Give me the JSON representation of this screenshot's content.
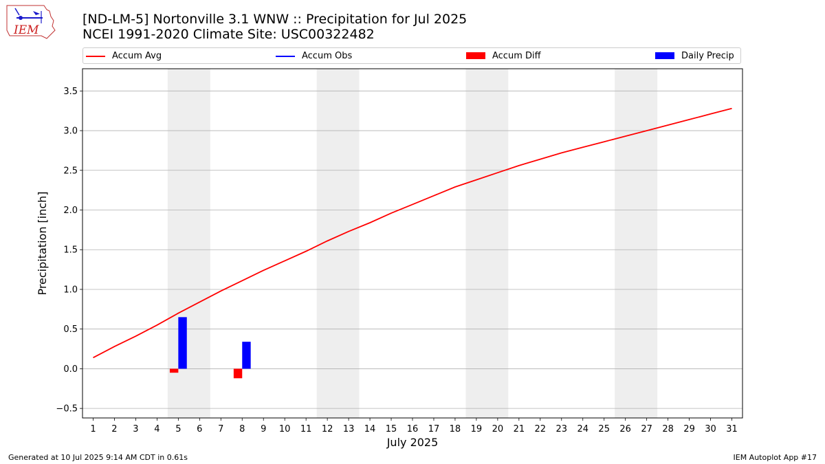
{
  "header": {
    "title_line1": "[ND-LM-5] Nortonville 3.1 WNW :: Precipitation for Jul 2025",
    "title_line2": "NCEI 1991-2020 Climate Site: USC00322482",
    "logo_text": "IEM"
  },
  "footer": {
    "generated": "Generated at 10 Jul 2025 9:14 AM CDT in 0.61s",
    "app": "IEM Autoplot App #17"
  },
  "legend": {
    "items": [
      {
        "label": "Accum Avg",
        "kind": "line",
        "color": "#ff0000"
      },
      {
        "label": "Accum Obs",
        "kind": "line",
        "color": "#0000ff"
      },
      {
        "label": "Accum Diff",
        "kind": "patch",
        "color": "#ff0000"
      },
      {
        "label": "Daily Precip",
        "kind": "patch",
        "color": "#0000ff"
      }
    ]
  },
  "chart_data": {
    "type": "bar",
    "title": "[ND-LM-5] Nortonville 3.1 WNW :: Precipitation for Jul 2025",
    "subtitle": "NCEI 1991-2020 Climate Site: USC00322482",
    "xlabel": "July 2025",
    "ylabel": "Precipitation [inch]",
    "xlim": [
      0.5,
      31.5
    ],
    "ylim": [
      -0.62,
      3.78
    ],
    "x_ticks": [
      1,
      2,
      3,
      4,
      5,
      6,
      7,
      8,
      9,
      10,
      11,
      12,
      13,
      14,
      15,
      16,
      17,
      18,
      19,
      20,
      21,
      22,
      23,
      24,
      25,
      26,
      27,
      28,
      29,
      30,
      31
    ],
    "y_ticks": [
      -0.5,
      0.0,
      0.5,
      1.0,
      1.5,
      2.0,
      2.5,
      3.0,
      3.5
    ],
    "y_tick_labels": [
      "−0.5",
      "0.0",
      "0.5",
      "1.0",
      "1.5",
      "2.0",
      "2.5",
      "3.0",
      "3.5"
    ],
    "grid": "horizontal",
    "legend_position": "top",
    "weekend_bands": [
      [
        4.5,
        6.5
      ],
      [
        11.5,
        13.5
      ],
      [
        18.5,
        20.5
      ],
      [
        25.5,
        27.5
      ]
    ],
    "colors": {
      "accum_avg": "#ff0000",
      "accum_obs": "#0000ff",
      "accum_diff": "#ff0000",
      "daily_precip": "#0000ff",
      "band": "#eeeeee",
      "grid": "#b0b0b0"
    },
    "series": [
      {
        "name": "Accum Avg",
        "type": "line",
        "x": [
          1,
          2,
          3,
          4,
          5,
          6,
          7,
          8,
          9,
          10,
          11,
          12,
          13,
          14,
          15,
          16,
          17,
          18,
          19,
          20,
          21,
          22,
          23,
          24,
          25,
          26,
          27,
          28,
          29,
          30,
          31
        ],
        "values": [
          0.14,
          0.28,
          0.41,
          0.55,
          0.7,
          0.84,
          0.98,
          1.11,
          1.24,
          1.36,
          1.48,
          1.61,
          1.73,
          1.84,
          1.96,
          2.07,
          2.18,
          2.29,
          2.38,
          2.47,
          2.56,
          2.64,
          2.72,
          2.79,
          2.86,
          2.93,
          3.0,
          3.07,
          3.14,
          3.21,
          3.28
        ]
      },
      {
        "name": "Accum Diff",
        "type": "bar",
        "x": [
          5,
          8
        ],
        "values": [
          -0.05,
          -0.12
        ]
      },
      {
        "name": "Daily Precip",
        "type": "bar",
        "x": [
          5,
          8
        ],
        "values": [
          0.65,
          0.34
        ]
      }
    ]
  }
}
